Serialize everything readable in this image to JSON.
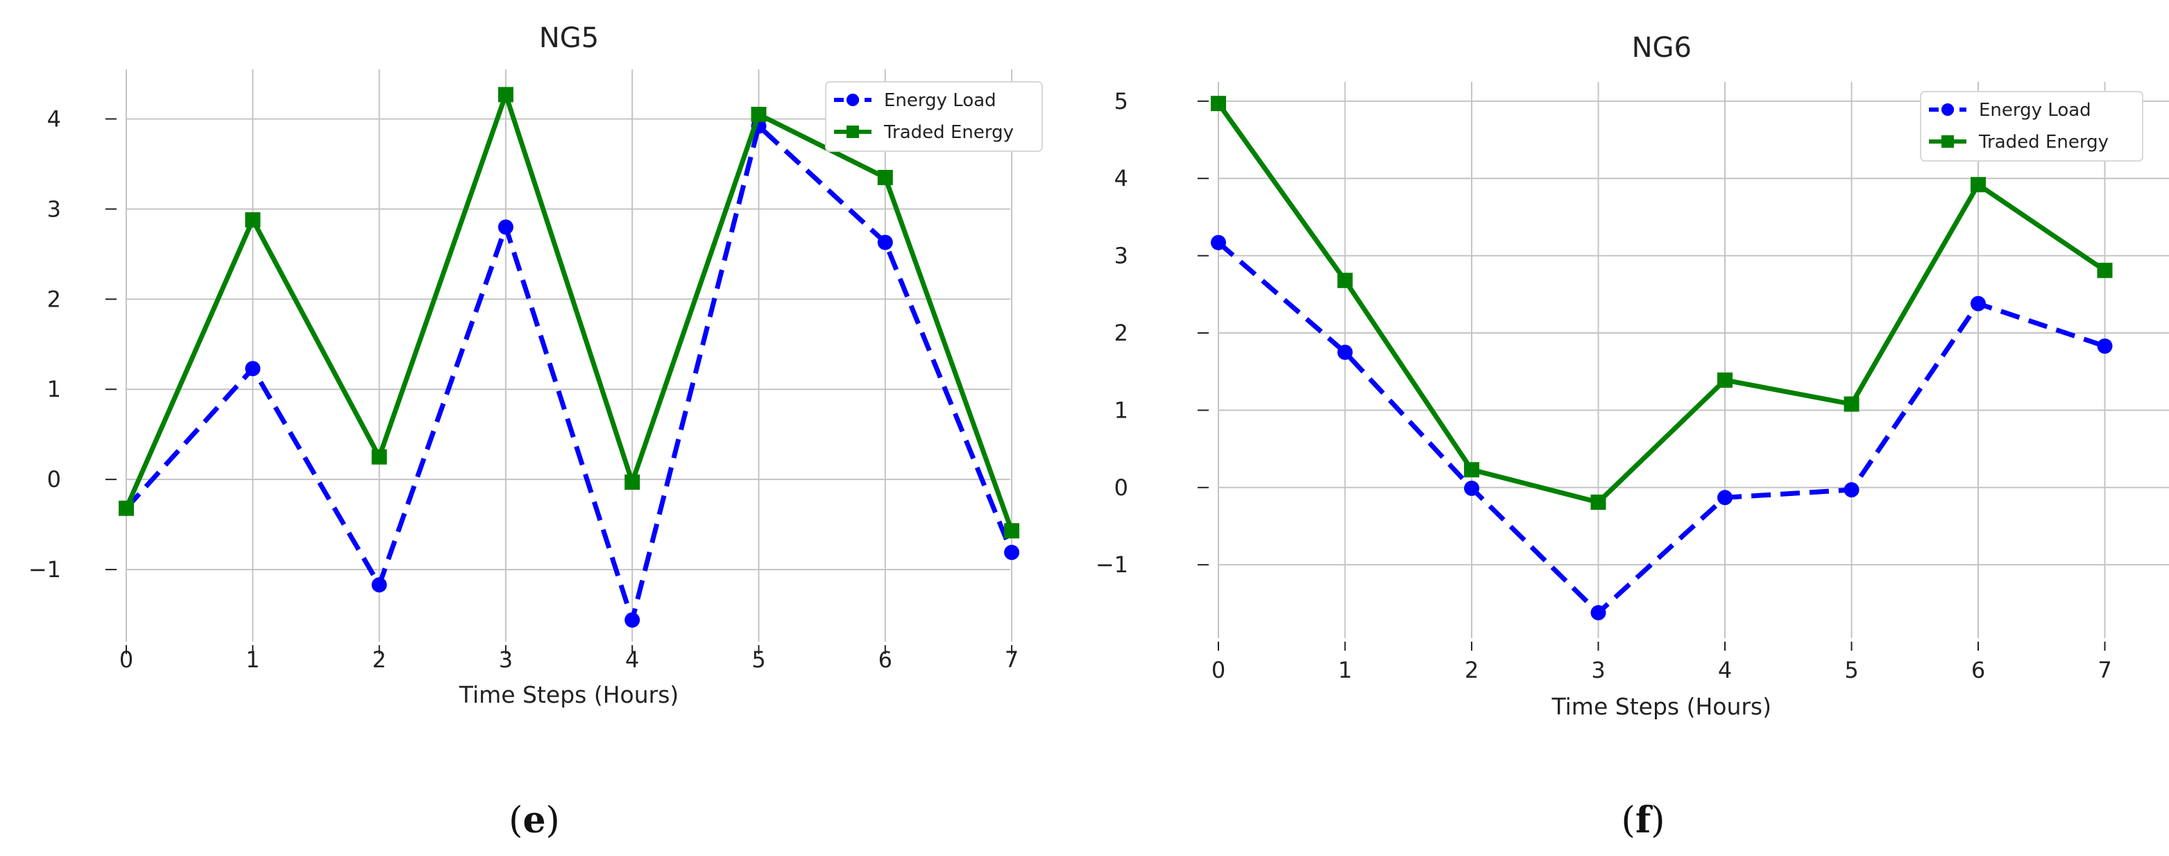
{
  "chart_data": [
    {
      "type": "line",
      "title": "NG5",
      "xlabel": "Time Steps (Hours)",
      "ylabel": "",
      "x": [
        0,
        1,
        2,
        3,
        4,
        5,
        6,
        7
      ],
      "xticks": [
        "0",
        "1",
        "2",
        "3",
        "4",
        "5",
        "6",
        "7"
      ],
      "yticks": [
        "−1",
        "0",
        "1",
        "2",
        "3",
        "4"
      ],
      "ytick_values": [
        -1,
        0,
        1,
        2,
        3,
        4
      ],
      "xlim": [
        -0.1,
        7.35
      ],
      "ylim": [
        -1.8,
        4.55
      ],
      "grid": true,
      "legend_position": "top-right",
      "caption": "(e)",
      "series": [
        {
          "name": "Energy Load",
          "color": "#0000ff",
          "style": "dashed",
          "marker": "circle",
          "values": [
            -0.32,
            1.23,
            -1.17,
            2.8,
            -1.56,
            3.92,
            2.63,
            -0.81
          ]
        },
        {
          "name": "Traded Energy",
          "color": "#008000",
          "style": "solid",
          "marker": "square",
          "values": [
            -0.32,
            2.88,
            0.25,
            4.27,
            -0.03,
            4.05,
            3.35,
            -0.57
          ]
        }
      ]
    },
    {
      "type": "line",
      "title": "NG6",
      "xlabel": "Time Steps (Hours)",
      "ylabel": "",
      "x": [
        0,
        1,
        2,
        3,
        4,
        5,
        6,
        7
      ],
      "xticks": [
        "0",
        "1",
        "2",
        "3",
        "4",
        "5",
        "6",
        "7"
      ],
      "yticks": [
        "−1",
        "0",
        "1",
        "2",
        "3",
        "4",
        "5"
      ],
      "ytick_values": [
        -1,
        0,
        1,
        2,
        3,
        4,
        5
      ],
      "xlim": [
        -0.1,
        7.35
      ],
      "ylim": [
        -1.95,
        5.25
      ],
      "grid": true,
      "legend_position": "top-right",
      "caption": "(f)",
      "series": [
        {
          "name": "Energy Load",
          "color": "#0000ff",
          "style": "dashed",
          "marker": "circle",
          "values": [
            3.17,
            1.75,
            -0.01,
            -1.62,
            -0.13,
            -0.03,
            2.38,
            1.83
          ]
        },
        {
          "name": "Traded Energy",
          "color": "#008000",
          "style": "solid",
          "marker": "square",
          "values": [
            4.97,
            2.68,
            0.23,
            -0.19,
            1.39,
            1.08,
            3.92,
            2.81
          ]
        }
      ]
    }
  ]
}
